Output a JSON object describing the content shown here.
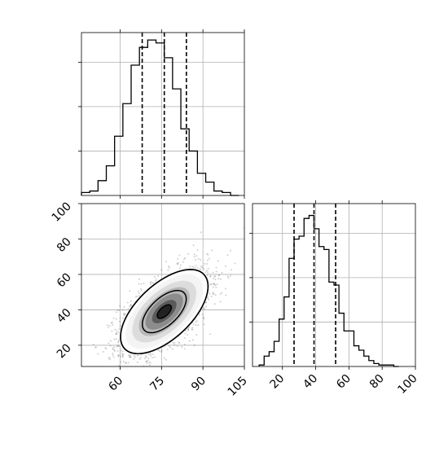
{
  "chart_data": [
    {
      "type": "histogram",
      "panel": "marginal-x",
      "bin_edges": [
        46,
        49,
        52,
        55,
        58,
        61,
        64,
        67,
        70,
        73,
        76,
        79,
        82,
        85,
        88,
        91,
        94,
        97,
        100,
        103
      ],
      "counts": [
        0.02,
        0.03,
        0.1,
        0.2,
        0.4,
        0.62,
        0.88,
        1.0,
        1.05,
        1.03,
        0.93,
        0.72,
        0.45,
        0.3,
        0.15,
        0.09,
        0.03,
        0.02,
        0.0
      ],
      "quantile_lines": [
        68,
        76,
        84
      ],
      "xlim": [
        46,
        105
      ],
      "xticks": [
        "60",
        "75",
        "90",
        "105"
      ],
      "y_tick_positions": [
        0.3,
        0.6,
        0.9
      ],
      "grid": true
    },
    {
      "type": "histogram",
      "panel": "marginal-y",
      "bin_edges": [
        6,
        9,
        12,
        15,
        18,
        21,
        24,
        27,
        30,
        33,
        36,
        39,
        42,
        45,
        48,
        51,
        54,
        57,
        60,
        63,
        66,
        69,
        72,
        75,
        78,
        81,
        84,
        87,
        90
      ],
      "counts": [
        0.01,
        0.07,
        0.1,
        0.17,
        0.32,
        0.47,
        0.73,
        0.86,
        0.88,
        1.0,
        1.02,
        0.93,
        0.81,
        0.79,
        0.57,
        0.55,
        0.36,
        0.24,
        0.24,
        0.14,
        0.11,
        0.07,
        0.04,
        0.02,
        0.01,
        0.01,
        0.01,
        0.0
      ],
      "quantile_lines": [
        27,
        39,
        52
      ],
      "xlim": [
        2,
        100
      ],
      "xticks": [
        "20",
        "40",
        "60",
        "80",
        "100"
      ],
      "y_tick_positions": [
        0.3,
        0.6,
        0.9
      ],
      "grid": true
    },
    {
      "type": "scatter",
      "panel": "joint",
      "x_mean": 76,
      "y_mean": 39,
      "x_sd": 8,
      "y_sd": 12,
      "correlation": 0.6,
      "n_points": 2500,
      "density_levels": [
        0.39,
        0.86,
        1.0
      ],
      "xlim": [
        46,
        105
      ],
      "ylim": [
        8,
        100
      ],
      "xticks": [
        "60",
        "75",
        "90",
        "105"
      ],
      "yticks": [
        "20",
        "40",
        "60",
        "80",
        "100"
      ],
      "grid": true
    }
  ]
}
